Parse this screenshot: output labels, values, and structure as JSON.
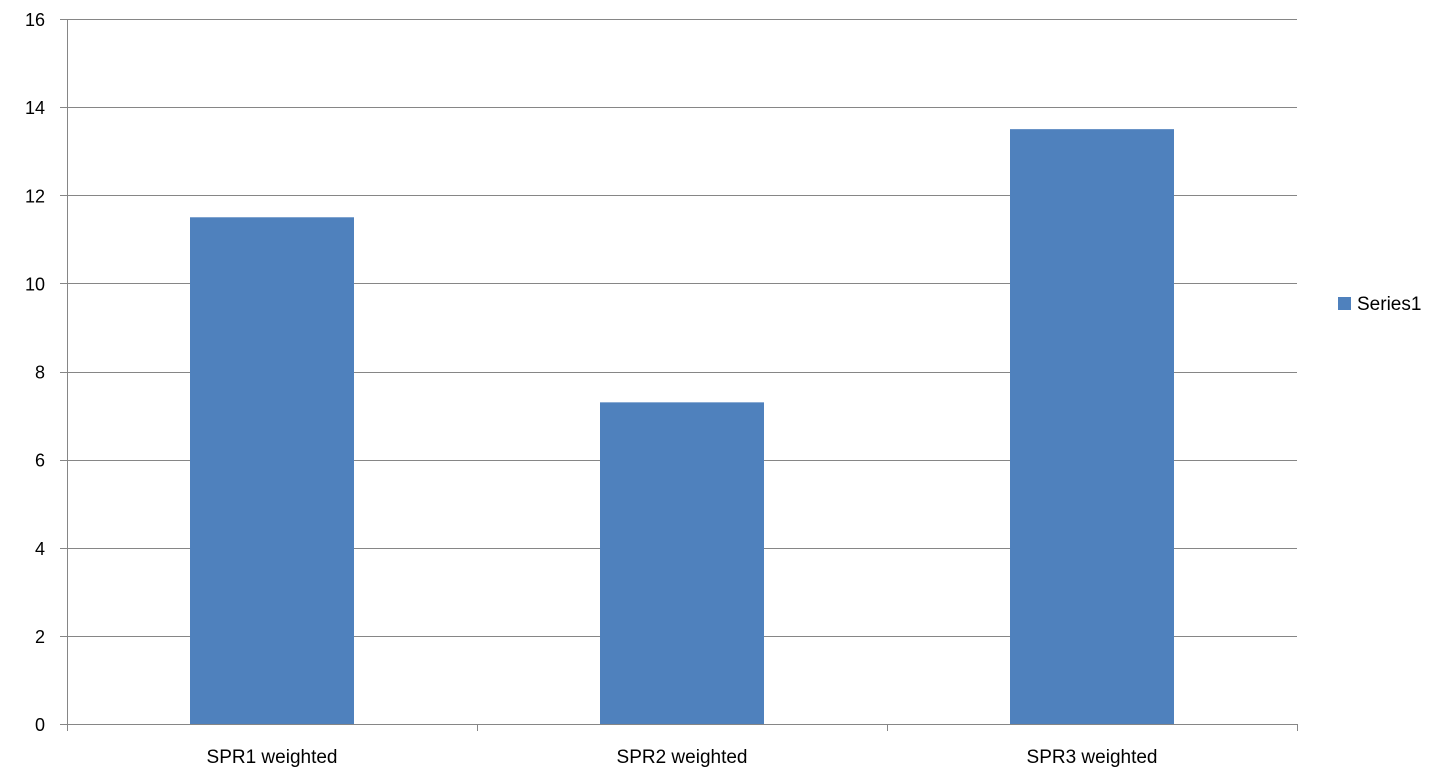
{
  "chart_data": {
    "type": "bar",
    "categories": [
      "SPR1 weighted",
      "SPR2 weighted",
      "SPR3 weighted"
    ],
    "series": [
      {
        "name": "Series1",
        "values": [
          11.5,
          7.3,
          13.5
        ],
        "color": "#4F81BD"
      }
    ],
    "ylim": [
      0,
      16
    ],
    "yticks": [
      0,
      2,
      4,
      6,
      8,
      10,
      12,
      14,
      16
    ],
    "grid": true,
    "legend": "right",
    "gridline_color": "#868686",
    "axis_color": "#868686"
  }
}
